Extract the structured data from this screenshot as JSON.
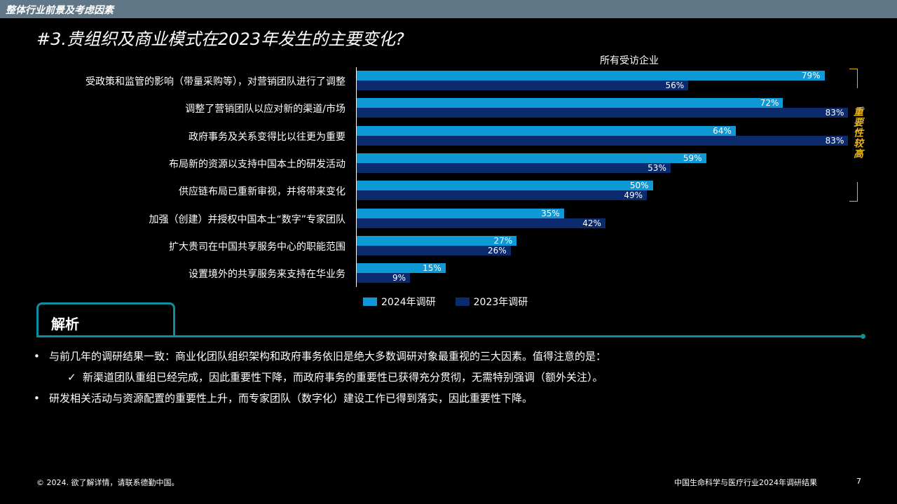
{
  "header": {
    "section": "整体行业前景及考虑因素"
  },
  "slide_title": "#3.贵组织及商业模式在2023年发生的主要变化?",
  "chart_data": {
    "type": "bar",
    "orientation": "horizontal",
    "title": "所有受访企业",
    "categories": [
      "受政策和监管的影响（带量采购等），对营销团队进行了调整",
      "调整了营销团队以应对新的渠道/市场",
      "政府事务及关系变得比以往更为重要",
      "布局新的资源以支持中国本土的研发活动",
      "供应链布局已重新审视，并将带来变化",
      "加强（创建）并授权中国本土“数字”专家团队",
      "扩大贵司在中国共享服务中心的职能范围",
      "设置境外的共享服务来支持在华业务"
    ],
    "series": [
      {
        "name": "2024年调研",
        "values": [
          79,
          72,
          64,
          59,
          50,
          35,
          27,
          15
        ],
        "color": "#0e98d6"
      },
      {
        "name": "2023年调研",
        "values": [
          56,
          83,
          83,
          53,
          49,
          42,
          26,
          9
        ],
        "color": "#0c2a6e"
      }
    ],
    "value_suffix": "%",
    "xlim": [
      0,
      100
    ],
    "legend_position": "bottom",
    "annotation": "重要性较高",
    "annotation_color": "#e8b41a"
  },
  "analysis": {
    "heading": "解析",
    "accent": "#0f8e9e",
    "bullets": [
      {
        "marker": "•",
        "text": "与前几年的调研结果一致：商业化团队组织架构和政府事务依旧是绝大多数调研对象最重视的三大因素。值得注意的是："
      },
      {
        "marker": "✓",
        "text": "新渠道团队重组已经完成，因此重要性下降，而政府事务的重要性已获得充分贯彻，无需特别强调（额外关注）。"
      },
      {
        "marker": "•",
        "text": "研发相关活动与资源配置的重要性上升，而专家团队（数字化）建设工作已得到落实，因此重要性下降。"
      }
    ]
  },
  "footer": {
    "left": "© 2024. 欲了解详情，请联系德勤中国。",
    "right": "中国生命科学与医疗行业2024年调研结果",
    "page": "7"
  }
}
